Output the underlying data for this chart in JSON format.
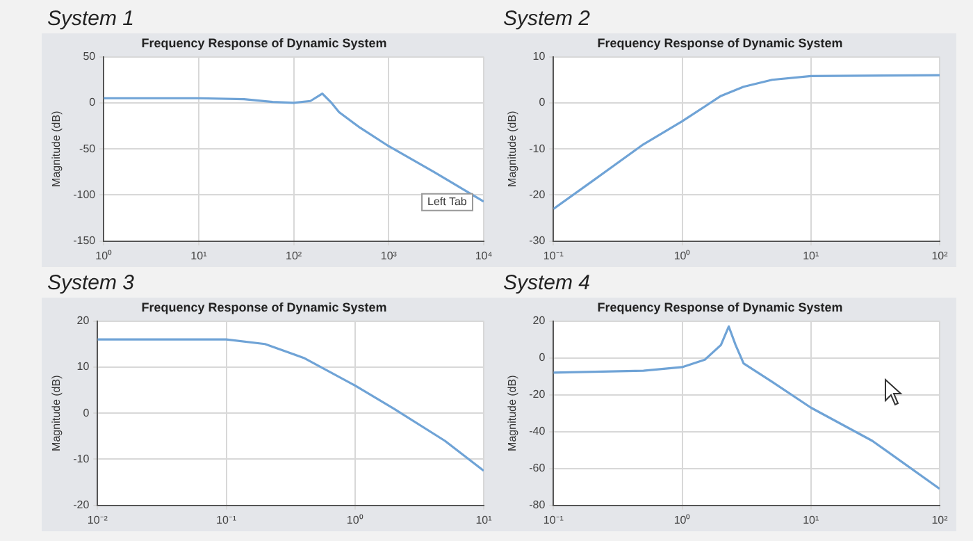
{
  "chart_data": [
    {
      "type": "line",
      "title": "System 1",
      "subtitle": "Frequency Response of Dynamic System",
      "ylabel": "Magnitude (dB)",
      "log": "x",
      "grid": true,
      "legend": false,
      "marker": "none",
      "annotations": [
        "Left Tab"
      ],
      "x": [
        1,
        10,
        30,
        60,
        100,
        150,
        200,
        250,
        300,
        500,
        1000,
        3000,
        10000
      ],
      "series": [
        {
          "color": "#6fa3d6",
          "values": [
            5,
            5,
            4,
            1,
            0,
            2,
            10,
            0,
            -10,
            -27,
            -47,
            -75,
            -107
          ]
        }
      ],
      "xlim": [
        1,
        10000
      ],
      "xticks": [
        {
          "value": 1,
          "label": "10⁰"
        },
        {
          "value": 10,
          "label": "10¹"
        },
        {
          "value": 100,
          "label": "10²"
        },
        {
          "value": 1000,
          "label": "10³"
        },
        {
          "value": 10000,
          "label": "10⁴"
        }
      ],
      "ylim": [
        -150,
        50
      ],
      "yticks": [
        -150,
        -100,
        -50,
        0,
        50
      ]
    },
    {
      "type": "line",
      "title": "System 2",
      "subtitle": "Frequency Response of Dynamic System",
      "ylabel": "Magnitude (dB)",
      "log": "x",
      "grid": true,
      "legend": false,
      "marker": "none",
      "x": [
        0.1,
        0.2,
        0.5,
        1,
        2,
        3,
        5,
        10,
        100
      ],
      "series": [
        {
          "color": "#6fa3d6",
          "values": [
            -23,
            -17,
            -9,
            -4,
            1.5,
            3.5,
            5,
            5.8,
            6
          ]
        }
      ],
      "xlim": [
        0.1,
        100
      ],
      "xticks": [
        {
          "value": 0.1,
          "label": "10⁻¹"
        },
        {
          "value": 1,
          "label": "10⁰"
        },
        {
          "value": 10,
          "label": "10¹"
        },
        {
          "value": 100,
          "label": "10²"
        }
      ],
      "ylim": [
        -30,
        10
      ],
      "yticks": [
        -30,
        -20,
        -10,
        0,
        10
      ]
    },
    {
      "type": "line",
      "title": "System 3",
      "subtitle": "Frequency Response of Dynamic System",
      "ylabel": "Magnitude (dB)",
      "log": "x",
      "grid": true,
      "legend": false,
      "marker": "none",
      "x": [
        0.01,
        0.1,
        0.2,
        0.4,
        1,
        2,
        5,
        10
      ],
      "series": [
        {
          "color": "#6fa3d6",
          "values": [
            16,
            16,
            15,
            12,
            6,
            1,
            -6,
            -12.5
          ]
        }
      ],
      "xlim": [
        0.01,
        10
      ],
      "xticks": [
        {
          "value": 0.01,
          "label": "10⁻²"
        },
        {
          "value": 0.1,
          "label": "10⁻¹"
        },
        {
          "value": 1,
          "label": "10⁰"
        },
        {
          "value": 10,
          "label": "10¹"
        }
      ],
      "ylim": [
        -20,
        20
      ],
      "yticks": [
        -20,
        -10,
        0,
        10,
        20
      ]
    },
    {
      "type": "line",
      "title": "System 4",
      "subtitle": "Frequency Response of Dynamic System",
      "ylabel": "Magnitude (dB)",
      "log": "x",
      "grid": true,
      "legend": false,
      "marker": "none",
      "x": [
        0.1,
        0.5,
        1,
        1.5,
        2,
        2.3,
        2.6,
        3,
        5,
        10,
        30,
        100
      ],
      "series": [
        {
          "color": "#6fa3d6",
          "values": [
            -8,
            -7,
            -5,
            -1,
            7,
            17,
            7,
            -3,
            -13,
            -27,
            -45,
            -71
          ]
        }
      ],
      "xlim": [
        0.1,
        100
      ],
      "xticks": [
        {
          "value": 0.1,
          "label": "10⁻¹"
        },
        {
          "value": 1,
          "label": "10⁰"
        },
        {
          "value": 10,
          "label": "10¹"
        },
        {
          "value": 100,
          "label": "10²"
        }
      ],
      "ylim": [
        -80,
        20
      ],
      "yticks": [
        -80,
        -60,
        -40,
        -20,
        0,
        20
      ]
    }
  ]
}
